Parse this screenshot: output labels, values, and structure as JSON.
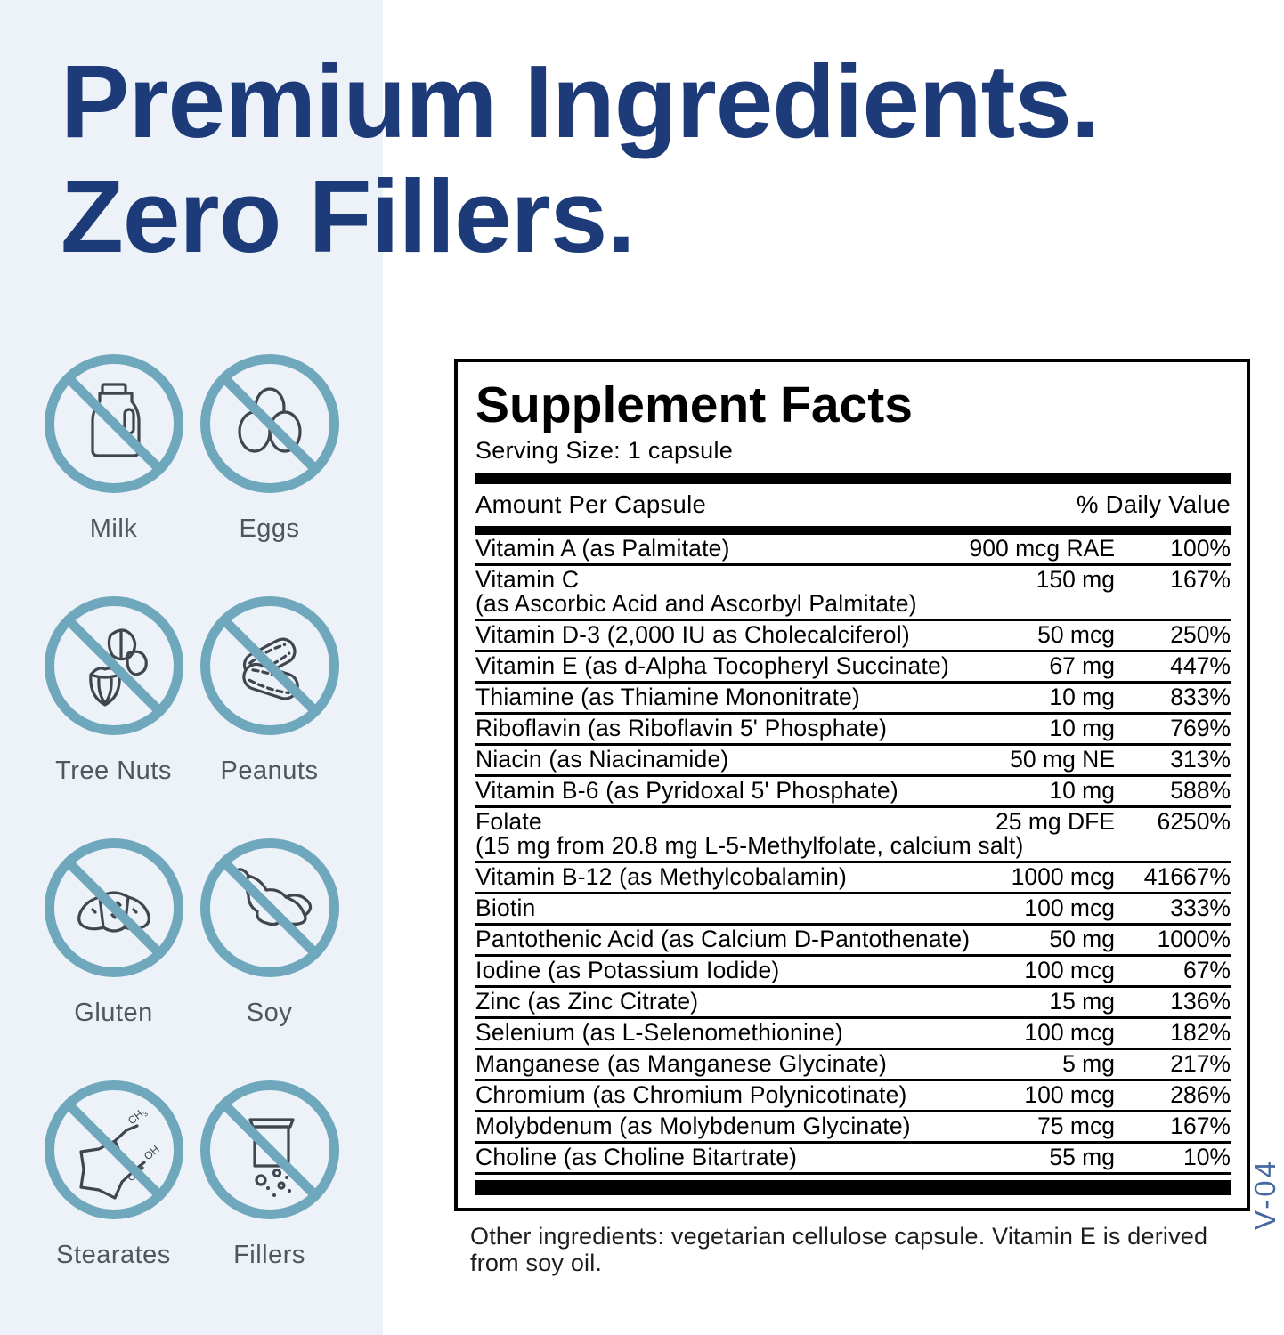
{
  "headline": {
    "line1": "Premium Ingredients.",
    "line2": "Zero Fillers."
  },
  "allergens": [
    {
      "label": "Milk",
      "icon": "milk-jug-icon"
    },
    {
      "label": "Eggs",
      "icon": "eggs-icon"
    },
    {
      "label": "Tree Nuts",
      "icon": "tree-nut-icon"
    },
    {
      "label": "Peanuts",
      "icon": "peanuts-icon"
    },
    {
      "label": "Gluten",
      "icon": "croissant-icon"
    },
    {
      "label": "Soy",
      "icon": "soybean-pod-icon"
    },
    {
      "label": "Stearates",
      "icon": "stearate-molecule-icon"
    },
    {
      "label": "Fillers",
      "icon": "filler-container-icon"
    }
  ],
  "supplement_facts": {
    "title": "Supplement Facts",
    "serving_size": "Serving Size: 1 capsule",
    "columns": {
      "left": "Amount Per Capsule",
      "right": "% Daily Value"
    },
    "rows": [
      {
        "name": "Vitamin A (as Palmitate)",
        "amount": "900 mcg RAE",
        "daily_value": "100%"
      },
      {
        "name": "Vitamin C",
        "note": "(as Ascorbic Acid and Ascorbyl Palmitate)",
        "amount": "150 mg",
        "daily_value": "167%"
      },
      {
        "name": "Vitamin D-3 (2,000 IU as Cholecalciferol)",
        "amount": "50 mcg",
        "daily_value": "250%"
      },
      {
        "name": "Vitamin E (as d-Alpha Tocopheryl Succinate)",
        "amount": "67 mg",
        "daily_value": "447%"
      },
      {
        "name": "Thiamine (as Thiamine Mononitrate)",
        "amount": "10 mg",
        "daily_value": "833%"
      },
      {
        "name": "Riboflavin (as Riboflavin 5' Phosphate)",
        "amount": "10 mg",
        "daily_value": "769%"
      },
      {
        "name": "Niacin (as Niacinamide)",
        "amount": "50 mg NE",
        "daily_value": "313%"
      },
      {
        "name": "Vitamin B-6 (as Pyridoxal 5' Phosphate)",
        "amount": "10 mg",
        "daily_value": "588%"
      },
      {
        "name": "Folate",
        "note": "(15 mg from 20.8 mg L-5-Methylfolate, calcium salt)",
        "amount": "25 mg DFE",
        "daily_value": "6250%"
      },
      {
        "name": "Vitamin B-12 (as Methylcobalamin)",
        "amount": "1000 mcg",
        "daily_value": "41667%"
      },
      {
        "name": "Biotin",
        "amount": "100 mcg",
        "daily_value": "333%"
      },
      {
        "name": "Pantothenic Acid (as Calcium D-Pantothenate)",
        "amount": "50 mg",
        "daily_value": "1000%"
      },
      {
        "name": "Iodine (as Potassium Iodide)",
        "amount": "100 mcg",
        "daily_value": "67%"
      },
      {
        "name": "Zinc (as Zinc Citrate)",
        "amount": "15 mg",
        "daily_value": "136%"
      },
      {
        "name": "Selenium (as L-Selenomethionine)",
        "amount": "100 mcg",
        "daily_value": "182%"
      },
      {
        "name": "Manganese (as Manganese Glycinate)",
        "amount": "5 mg",
        "daily_value": "217%"
      },
      {
        "name": "Chromium (as Chromium Polynicotinate)",
        "amount": "100 mcg",
        "daily_value": "286%"
      },
      {
        "name": "Molybdenum (as Molybdenum Glycinate)",
        "amount": "75 mcg",
        "daily_value": "167%"
      },
      {
        "name": "Choline (as Choline Bitartrate)",
        "amount": "55 mg",
        "daily_value": "10%"
      }
    ]
  },
  "other_ingredients": "Other ingredients: vegetarian cellulose capsule. Vitamin E is derived from soy oil.",
  "side_code": "V-04",
  "colors": {
    "headline_navy": "#1c3b78",
    "left_panel_blue": "#ecf2f8",
    "ban_circle_teal": "#6fa7bd",
    "icon_line_gray": "#3f464d",
    "label_gray": "#50565c",
    "side_code_blue": "#45689e",
    "panel_black": "#000000"
  }
}
